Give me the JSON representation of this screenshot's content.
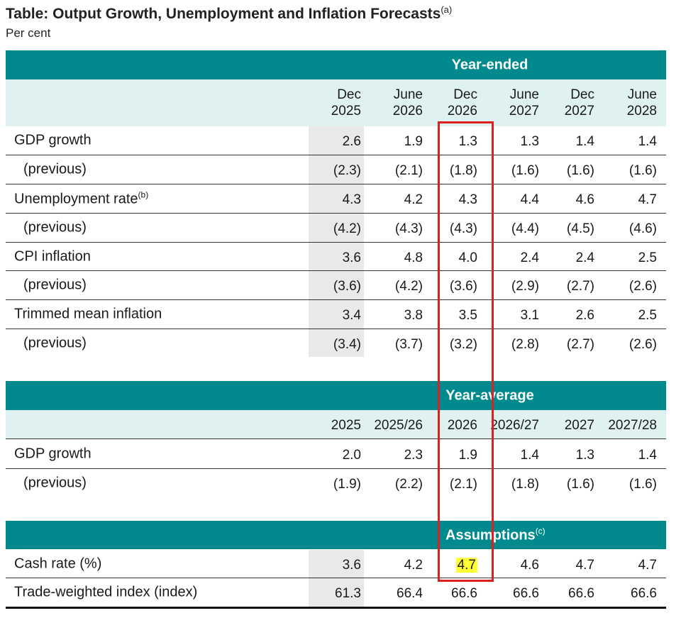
{
  "title": "Table: Output Growth, Unemployment and Inflation Forecasts",
  "title_note": "(a)",
  "subtitle": "Per cent",
  "sections": {
    "year_ended": {
      "label": "Year-ended",
      "columns": [
        {
          "line1": "Dec",
          "line2": "2025"
        },
        {
          "line1": "June",
          "line2": "2026"
        },
        {
          "line1": "Dec",
          "line2": "2026"
        },
        {
          "line1": "June",
          "line2": "2027"
        },
        {
          "line1": "Dec",
          "line2": "2027"
        },
        {
          "line1": "June",
          "line2": "2028"
        }
      ],
      "rows": [
        {
          "label": "GDP growth",
          "note": "",
          "values": [
            "2.6",
            "1.9",
            "1.3",
            "1.3",
            "1.4",
            "1.4"
          ]
        },
        {
          "label": "(previous)",
          "note": "",
          "values": [
            "(2.3)",
            "(2.1)",
            "(1.8)",
            "(1.6)",
            "(1.6)",
            "(1.6)"
          ]
        },
        {
          "label": "Unemployment rate",
          "note": "(b)",
          "values": [
            "4.3",
            "4.2",
            "4.3",
            "4.4",
            "4.6",
            "4.7"
          ]
        },
        {
          "label": "(previous)",
          "note": "",
          "values": [
            "(4.2)",
            "(4.3)",
            "(4.3)",
            "(4.4)",
            "(4.5)",
            "(4.6)"
          ]
        },
        {
          "label": "CPI inflation",
          "note": "",
          "values": [
            "3.6",
            "4.8",
            "4.0",
            "2.4",
            "2.4",
            "2.5"
          ]
        },
        {
          "label": "(previous)",
          "note": "",
          "values": [
            "(3.6)",
            "(4.2)",
            "(3.6)",
            "(2.9)",
            "(2.7)",
            "(2.6)"
          ]
        },
        {
          "label": "Trimmed mean inflation",
          "note": "",
          "values": [
            "3.4",
            "3.8",
            "3.5",
            "3.1",
            "2.6",
            "2.5"
          ]
        },
        {
          "label": "(previous)",
          "note": "",
          "values": [
            "(3.4)",
            "(3.7)",
            "(3.2)",
            "(2.8)",
            "(2.7)",
            "(2.6)"
          ]
        }
      ]
    },
    "year_average": {
      "label": "Year-average",
      "columns": [
        "2025",
        "2025/26",
        "2026",
        "2026/27",
        "2027",
        "2027/28"
      ],
      "rows": [
        {
          "label": "GDP growth",
          "values": [
            "2.0",
            "2.3",
            "1.9",
            "1.4",
            "1.3",
            "1.4"
          ]
        },
        {
          "label": "(previous)",
          "values": [
            "(1.9)",
            "(2.2)",
            "(2.1)",
            "(1.8)",
            "(1.6)",
            "(1.6)"
          ]
        }
      ]
    },
    "assumptions": {
      "label": "Assumptions",
      "note": "(c)",
      "rows": [
        {
          "label": "Cash rate (%)",
          "values": [
            "3.6",
            "4.2",
            "4.7",
            "4.6",
            "4.7",
            "4.7"
          ]
        },
        {
          "label": "Trade-weighted index (index)",
          "values": [
            "61.3",
            "66.4",
            "66.6",
            "66.6",
            "66.6",
            "66.6"
          ]
        }
      ]
    }
  },
  "colors": {
    "band": "#008a8e",
    "header_row": "#dff2f1",
    "shaded_column": "#e9e9e9",
    "highlight_box": "#e02020",
    "highlight_fill": "#ffff33"
  }
}
